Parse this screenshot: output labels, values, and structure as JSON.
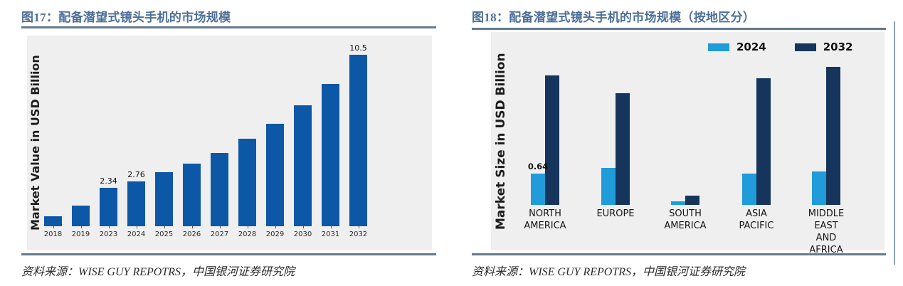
{
  "page": {
    "background": "#ffffff",
    "rule_color": "#64798e",
    "plot_background": "#efeff0",
    "title_color": "#4e6f99"
  },
  "figures": [
    {
      "title": "图17：配备潜望式镜头手机的市场规模",
      "source": "资料来源：WISE GUY REPOTRS，中国银河证券研究院"
    },
    {
      "title": "图18：配备潜望式镜头手机的市场规模（按地区分）",
      "source": "资料来源：WISE GUY REPOTRS，中国银河证券研究院"
    }
  ],
  "chart_data": [
    {
      "id": "fig17",
      "type": "bar",
      "title": "图17：配备潜望式镜头手机的市场规模",
      "xlabel": "",
      "ylabel": "Market Value in USD Billion",
      "categories": [
        "2018",
        "2019",
        "2023",
        "2024",
        "2025",
        "2026",
        "2027",
        "2028",
        "2029",
        "2030",
        "2031",
        "2032"
      ],
      "values": [
        0.6,
        1.27,
        2.34,
        2.76,
        3.3,
        3.85,
        4.5,
        5.35,
        6.3,
        7.4,
        8.75,
        10.5
      ],
      "data_labels": {
        "2023": "2.34",
        "2024": "2.76",
        "2032": "10.5"
      },
      "ylim": [
        0,
        11.7
      ],
      "grid": false,
      "legend": false,
      "bar_color": "#0d57a7"
    },
    {
      "id": "fig18",
      "type": "bar",
      "title": "图18：配备潜望式镜头手机的市场规模（按地区分）",
      "xlabel": "",
      "ylabel": "Market Size in USD Billion",
      "categories": [
        [
          "NORTH",
          "AMERICA"
        ],
        [
          "EUROPE"
        ],
        [
          "SOUTH",
          "AMERICA"
        ],
        [
          "ASIA",
          "PACIFIC"
        ],
        [
          "MIDDLE",
          "EAST",
          "AND",
          "AFRICA"
        ]
      ],
      "series": [
        {
          "name": "2024",
          "color": "#1f9cd9",
          "values": [
            0.64,
            0.75,
            0.07,
            0.64,
            0.67
          ]
        },
        {
          "name": "2032",
          "color": "#16355d",
          "values": [
            2.62,
            2.26,
            0.19,
            2.56,
            2.8
          ]
        }
      ],
      "data_labels": [
        {
          "series": "2024",
          "category_index": 0,
          "text": "0.64"
        }
      ],
      "ylim": [
        0,
        3.5
      ],
      "grid": false,
      "legend": true,
      "legend_position": "top-right"
    }
  ]
}
